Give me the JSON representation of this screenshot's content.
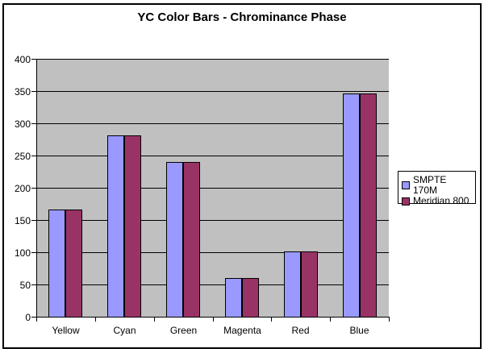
{
  "chart_data": {
    "type": "bar",
    "title": "YC Color Bars - Chrominance Phase",
    "categories": [
      "Yellow",
      "Cyan",
      "Green",
      "Magenta",
      "Red",
      "Blue"
    ],
    "series": [
      {
        "name": "SMPTE 170M",
        "color": "#9999FF",
        "values": [
          167,
          283,
          241,
          61,
          103,
          347
        ]
      },
      {
        "name": "Meridian 800",
        "color": "#993366",
        "values": [
          167,
          283,
          241,
          61,
          103,
          347
        ]
      }
    ],
    "xlabel": "",
    "ylabel": "",
    "ylim": [
      0,
      400
    ],
    "y_ticks": [
      0,
      50,
      100,
      150,
      200,
      250,
      300,
      350,
      400
    ],
    "grid": true,
    "legend_position": "right",
    "plot_background": "#C0C0C0",
    "chart_background": "#FFFFFF",
    "gridline_color": "#000000",
    "bar_border_color": "#000000"
  }
}
